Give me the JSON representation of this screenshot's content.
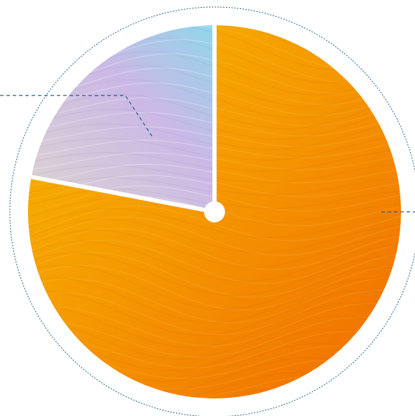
{
  "chart_data": {
    "type": "pie",
    "title": "",
    "start_angle_deg": 0,
    "direction": "clockwise",
    "slices": [
      {
        "label": "",
        "value": 78,
        "style": "orange-wave"
      },
      {
        "label": "",
        "value": 22,
        "style": "pastel-wave"
      }
    ],
    "colors": {
      "orange_light": "#f6b800",
      "orange_mid": "#f59a00",
      "orange_dark": "#f06a00",
      "pastel_blue": "#8fd6ea",
      "pastel_lavender": "#cbb8e6",
      "pastel_pale": "#dcd4d0",
      "separator": "#ffffff",
      "ring_stroke": "#1f5f8b",
      "leader_line": "#1f5f8b"
    },
    "decorations": {
      "outer_dotted_ring": true,
      "center_hub": true,
      "leader_lines": 2
    }
  }
}
